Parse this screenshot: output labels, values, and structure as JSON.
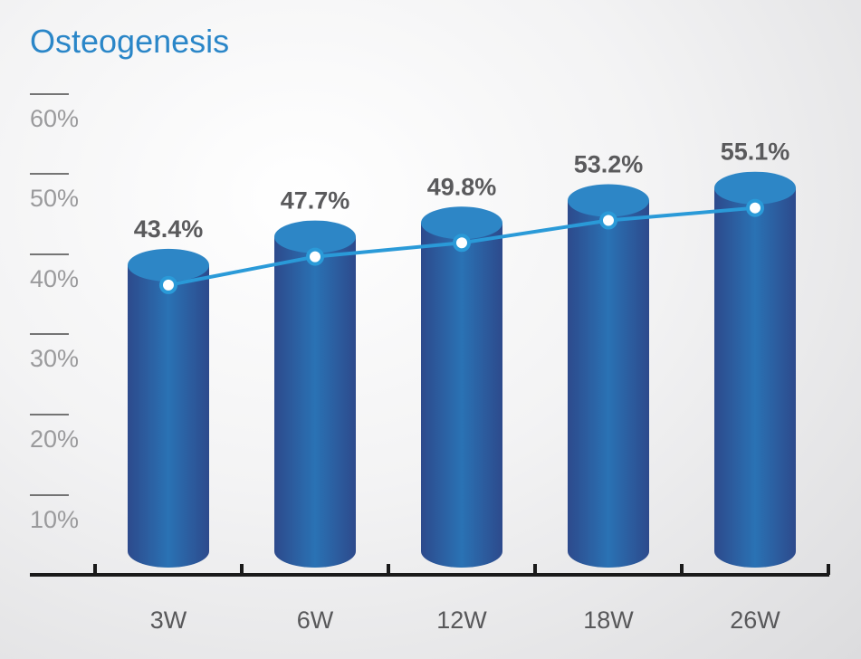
{
  "chart_data": {
    "type": "bar",
    "title": "Osteogenesis",
    "categories": [
      "3W",
      "6W",
      "12W",
      "18W",
      "26W"
    ],
    "values": [
      43.4,
      47.7,
      49.8,
      53.2,
      55.1
    ],
    "value_labels": [
      "43.4%",
      "47.7%",
      "49.8%",
      "53.2%",
      "55.1%"
    ],
    "ytick_labels": [
      "60%",
      "50%",
      "40%",
      "30%",
      "20%",
      "10%"
    ],
    "ytick_values": [
      60,
      50,
      40,
      30,
      20,
      10
    ],
    "overlay_line": true,
    "ylim": [
      0,
      60
    ],
    "grid": false,
    "colors": {
      "title": "#2a86c8",
      "bar_dark": "#2d4a8c",
      "bar_light": "#2a72b4",
      "bar_top": "#2d86c6",
      "line": "#2a9ad8",
      "axis": "#1a1a1a"
    }
  }
}
